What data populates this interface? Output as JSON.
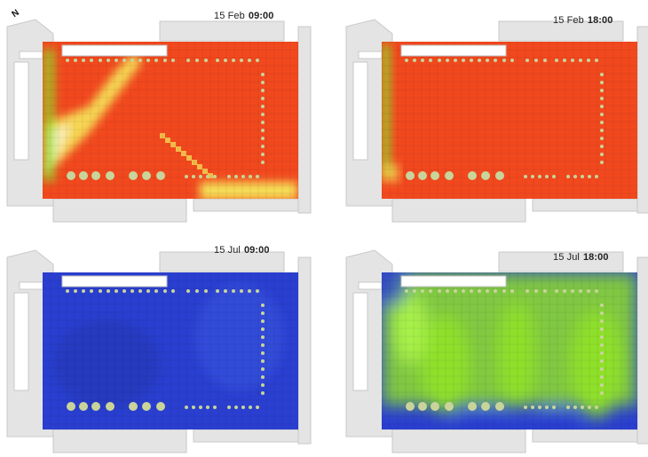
{
  "panels": [
    {
      "date": "15 Feb",
      "time": "09:00",
      "show_north": true,
      "scenario": "feb-morning"
    },
    {
      "date": "15 Feb",
      "time": "18:00",
      "show_north": false,
      "scenario": "feb-evening"
    },
    {
      "date": "15 Jul",
      "time": "09:00",
      "show_north": false,
      "scenario": "jul-morning"
    },
    {
      "date": "15 Jul",
      "time": "18:00",
      "show_north": false,
      "scenario": "jul-evening"
    }
  ],
  "north_label": "N",
  "colors": {
    "hot": "#f2481e",
    "warm": "#f7ee5c",
    "mild": "#8fe02a",
    "cool": "#2a3fd0",
    "building": "#e4e4e4",
    "building_edge": "#c9c9c9",
    "column": "#c8d49a"
  }
}
